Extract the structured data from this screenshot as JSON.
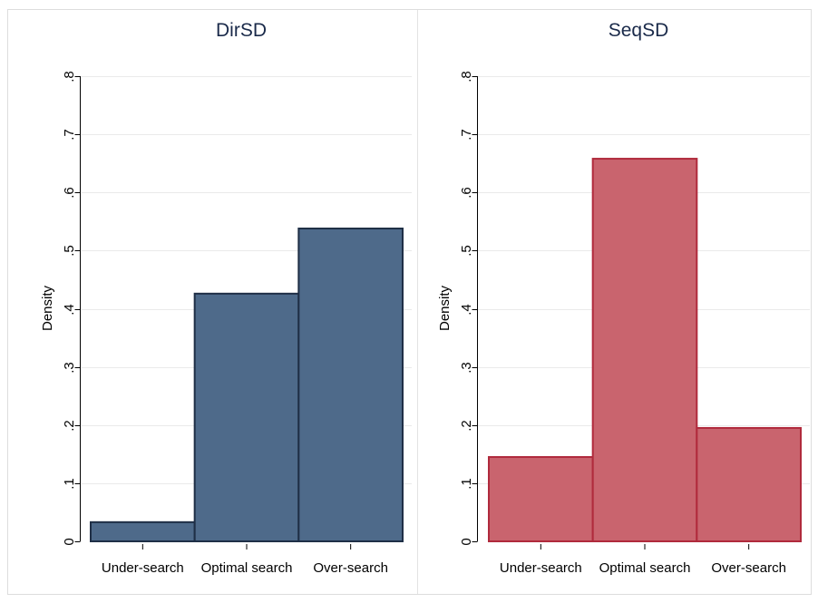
{
  "chart_data": [
    {
      "type": "bar",
      "title": "DirSD",
      "ylabel": "Density",
      "xlabel": "",
      "categories": [
        "Under-search",
        "Optimal search",
        "Over-search"
      ],
      "values": [
        0.033,
        0.426,
        0.538
      ],
      "ylim": [
        0,
        0.8
      ],
      "yticks": [
        0,
        0.1,
        0.2,
        0.3,
        0.4,
        0.5,
        0.6,
        0.7,
        0.8
      ],
      "ytick_labels": [
        "0",
        ".1",
        ".2",
        ".3",
        ".4",
        ".5",
        ".6",
        ".7",
        ".8"
      ],
      "grid": true,
      "colors": {
        "fill": "#4e6a8a",
        "stroke": "#1f2f46"
      }
    },
    {
      "type": "bar",
      "title": "SeqSD",
      "ylabel": "Density",
      "xlabel": "",
      "categories": [
        "Under-search",
        "Optimal search",
        "Over-search"
      ],
      "values": [
        0.145,
        0.658,
        0.195
      ],
      "ylim": [
        0,
        0.8
      ],
      "yticks": [
        0,
        0.1,
        0.2,
        0.3,
        0.4,
        0.5,
        0.6,
        0.7,
        0.8
      ],
      "ytick_labels": [
        "0",
        ".1",
        ".2",
        ".3",
        ".4",
        ".5",
        ".6",
        ".7",
        ".8"
      ],
      "grid": true,
      "colors": {
        "fill": "#c9646e",
        "stroke": "#b02a3c"
      }
    }
  ]
}
